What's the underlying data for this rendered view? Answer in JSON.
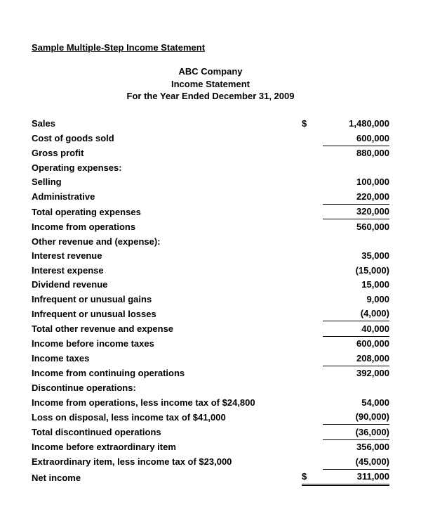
{
  "doc_title": "Sample Multiple-Step Income Statement",
  "header": {
    "company": "ABC Company",
    "statement": "Income Statement",
    "period": "For the Year Ended December 31, 2009"
  },
  "currency": "$",
  "rows": {
    "sales": {
      "label": "Sales",
      "amount": "1,480,000"
    },
    "cogs": {
      "label": "Cost of goods sold",
      "amount": "600,000"
    },
    "gross_profit": {
      "label": "Gross profit",
      "amount": "880,000"
    },
    "opex_header": {
      "label": "Operating expenses:"
    },
    "selling": {
      "label": "Selling",
      "amount": "100,000"
    },
    "admin": {
      "label": "Administrative",
      "amount": "220,000"
    },
    "total_opex": {
      "label": "Total operating expenses",
      "amount": "320,000"
    },
    "income_ops": {
      "label": "Income from operations",
      "amount": "560,000"
    },
    "other_header": {
      "label": "Other revenue and (expense):"
    },
    "int_rev": {
      "label": "Interest revenue",
      "amount": "35,000"
    },
    "int_exp": {
      "label": "Interest expense",
      "amount": "(15,000)"
    },
    "div_rev": {
      "label": "Dividend revenue",
      "amount": "15,000"
    },
    "unusual_gains": {
      "label": "Infrequent or unusual gains",
      "amount": "9,000"
    },
    "unusual_losses": {
      "label": "Infrequent or unusual losses",
      "amount": "(4,000)"
    },
    "total_other": {
      "label": "Total other revenue and expense",
      "amount": "40,000"
    },
    "income_before_tax": {
      "label": "Income before income taxes",
      "amount": "600,000"
    },
    "income_taxes": {
      "label": "Income taxes",
      "amount": "208,000"
    },
    "income_continuing": {
      "label": "Income from continuing operations",
      "amount": "392,000"
    },
    "discont_header": {
      "label": "Discontinue operations:"
    },
    "discont_income": {
      "label": "Income from operations, less income tax of $24,800",
      "amount": "54,000"
    },
    "discont_loss": {
      "label": "Loss on disposal, less income tax of $41,000",
      "amount": "(90,000)"
    },
    "total_discont": {
      "label": "Total discontinued operations",
      "amount": "(36,000)"
    },
    "income_before_extra": {
      "label": "Income before extraordinary item",
      "amount": "356,000"
    },
    "extraordinary": {
      "label": "Extraordinary item, less income tax of $23,000",
      "amount": "(45,000)"
    },
    "net_income": {
      "label": "Net income",
      "amount": "311,000"
    }
  }
}
